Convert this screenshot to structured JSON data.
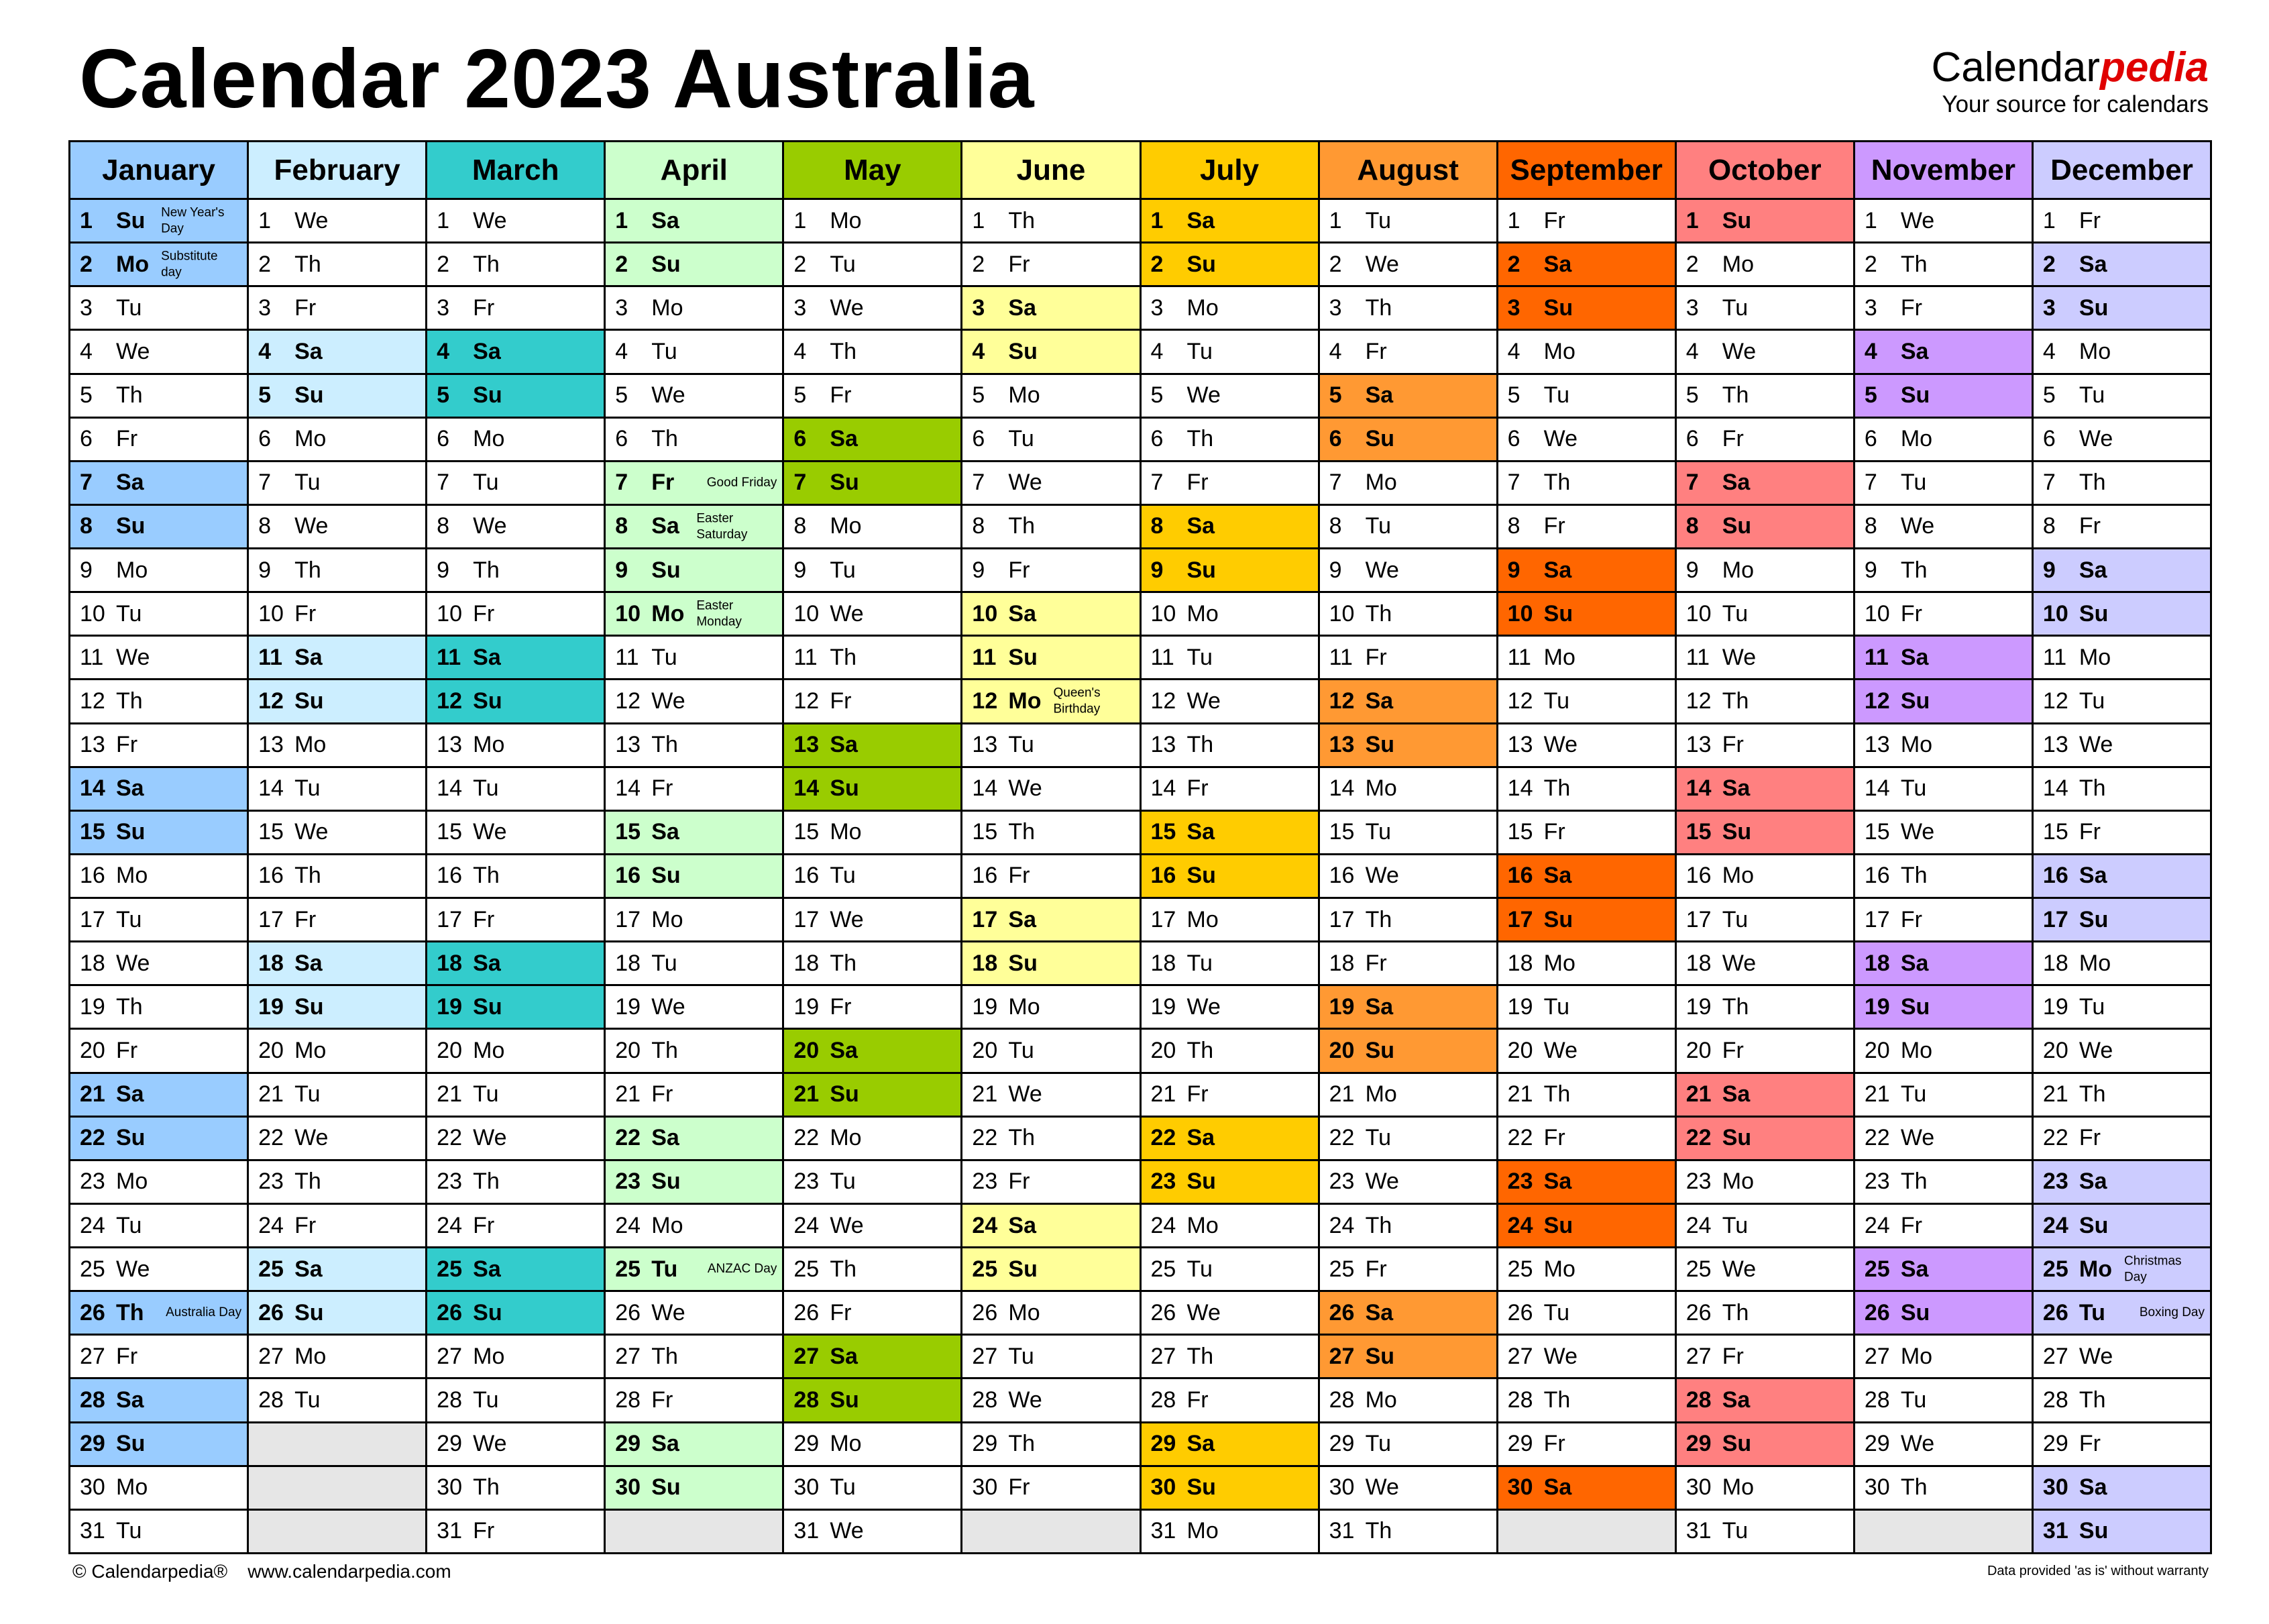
{
  "title": "Calendar 2023 Australia",
  "brand": {
    "name_part1": "Calendar",
    "name_part2": "pedia",
    "tagline": "Your source for calendars"
  },
  "footer": {
    "copyright": "© Calendarpedia®",
    "url": "www.calendarpedia.com",
    "disclaimer": "Data provided 'as is' without warranty"
  },
  "year": 2023,
  "weekday_abbr": [
    "Su",
    "Mo",
    "Tu",
    "We",
    "Th",
    "Fr",
    "Sa"
  ],
  "months": [
    {
      "name": "January",
      "days": 31,
      "first_weekday": 0,
      "header_color": "#99ccff",
      "weekend_color": "#99ccff"
    },
    {
      "name": "February",
      "days": 28,
      "first_weekday": 3,
      "header_color": "#cceeff",
      "weekend_color": "#cceeff"
    },
    {
      "name": "March",
      "days": 31,
      "first_weekday": 3,
      "header_color": "#33cccc",
      "weekend_color": "#33cccc"
    },
    {
      "name": "April",
      "days": 30,
      "first_weekday": 6,
      "header_color": "#ccffcc",
      "weekend_color": "#ccffcc"
    },
    {
      "name": "May",
      "days": 31,
      "first_weekday": 1,
      "header_color": "#99cc00",
      "weekend_color": "#99cc00"
    },
    {
      "name": "June",
      "days": 30,
      "first_weekday": 4,
      "header_color": "#ffff99",
      "weekend_color": "#ffff99"
    },
    {
      "name": "July",
      "days": 31,
      "first_weekday": 6,
      "header_color": "#ffcc00",
      "weekend_color": "#ffcc00"
    },
    {
      "name": "August",
      "days": 31,
      "first_weekday": 2,
      "header_color": "#ff9933",
      "weekend_color": "#ff9933"
    },
    {
      "name": "September",
      "days": 30,
      "first_weekday": 5,
      "header_color": "#ff6600",
      "weekend_color": "#ff6600"
    },
    {
      "name": "October",
      "days": 31,
      "first_weekday": 0,
      "header_color": "#ff8080",
      "weekend_color": "#ff8080"
    },
    {
      "name": "November",
      "days": 30,
      "first_weekday": 3,
      "header_color": "#cc99ff",
      "weekend_color": "#cc99ff"
    },
    {
      "name": "December",
      "days": 31,
      "first_weekday": 5,
      "header_color": "#ccccff",
      "weekend_color": "#ccccff"
    }
  ],
  "holidays": [
    {
      "month": 1,
      "day": 1,
      "label": "New Year's Day"
    },
    {
      "month": 1,
      "day": 2,
      "label": "Substitute day"
    },
    {
      "month": 1,
      "day": 26,
      "label": "Australia Day"
    },
    {
      "month": 4,
      "day": 7,
      "label": "Good Friday"
    },
    {
      "month": 4,
      "day": 8,
      "label": "Easter Saturday"
    },
    {
      "month": 4,
      "day": 10,
      "label": "Easter Monday"
    },
    {
      "month": 4,
      "day": 25,
      "label": "ANZAC Day"
    },
    {
      "month": 6,
      "day": 12,
      "label": "Queen's Birthday"
    },
    {
      "month": 12,
      "day": 25,
      "label": "Christmas Day"
    },
    {
      "month": 12,
      "day": 26,
      "label": "Boxing Day"
    }
  ],
  "colors": {
    "empty_cell": "#e6e6e6",
    "brand_accent": "#e00000"
  }
}
